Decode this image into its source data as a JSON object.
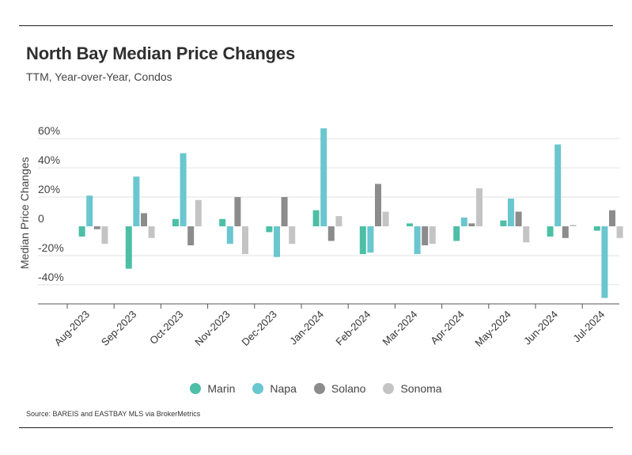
{
  "header": {
    "title": "North Bay Median Price Changes",
    "subtitle": "TTM, Year-over-Year, Condos"
  },
  "source": "Source:  BAREIS and EASTBAY MLS via BrokerMetrics",
  "colors": {
    "Marin": "#4cbfa6",
    "Napa": "#6ac6cf",
    "Solano": "#8c8c8c",
    "Sonoma": "#c4c4c4"
  },
  "chart_data": {
    "type": "bar",
    "title": "North Bay Median Price Changes",
    "subtitle": "TTM, Year-over-Year, Condos",
    "xlabel": "",
    "ylabel": "Median Price Changes",
    "ylim": [
      -50,
      67
    ],
    "yticks": [
      -40,
      -20,
      0,
      20,
      40,
      60
    ],
    "ytick_labels": [
      "-40%",
      "-20%",
      "0",
      "20%",
      "40%",
      "60%"
    ],
    "grid": "horizontal",
    "legend": "bottom",
    "categories": [
      "Aug-2023",
      "Sep-2023",
      "Oct-2023",
      "Nov-2023",
      "Dec-2023",
      "Jan-2024",
      "Feb-2024",
      "Mar-2024",
      "Apr-2024",
      "May-2024",
      "Jun-2024",
      "Jul-2024"
    ],
    "series": [
      {
        "name": "Marin",
        "values": [
          -7,
          -29,
          5,
          5,
          -4,
          11,
          -19,
          2,
          -10,
          4,
          -7,
          -3
        ]
      },
      {
        "name": "Napa",
        "values": [
          21,
          34,
          50,
          -12,
          -21,
          67,
          -18,
          -19,
          6,
          19,
          56,
          -49
        ]
      },
      {
        "name": "Solano",
        "values": [
          -2,
          9,
          -13,
          20,
          20,
          -10,
          29,
          -13,
          2,
          10,
          -8,
          11
        ]
      },
      {
        "name": "Sonoma",
        "values": [
          -12,
          -8,
          18,
          -19,
          -12,
          7,
          10,
          -12,
          26,
          -11,
          1,
          -8
        ]
      }
    ]
  }
}
